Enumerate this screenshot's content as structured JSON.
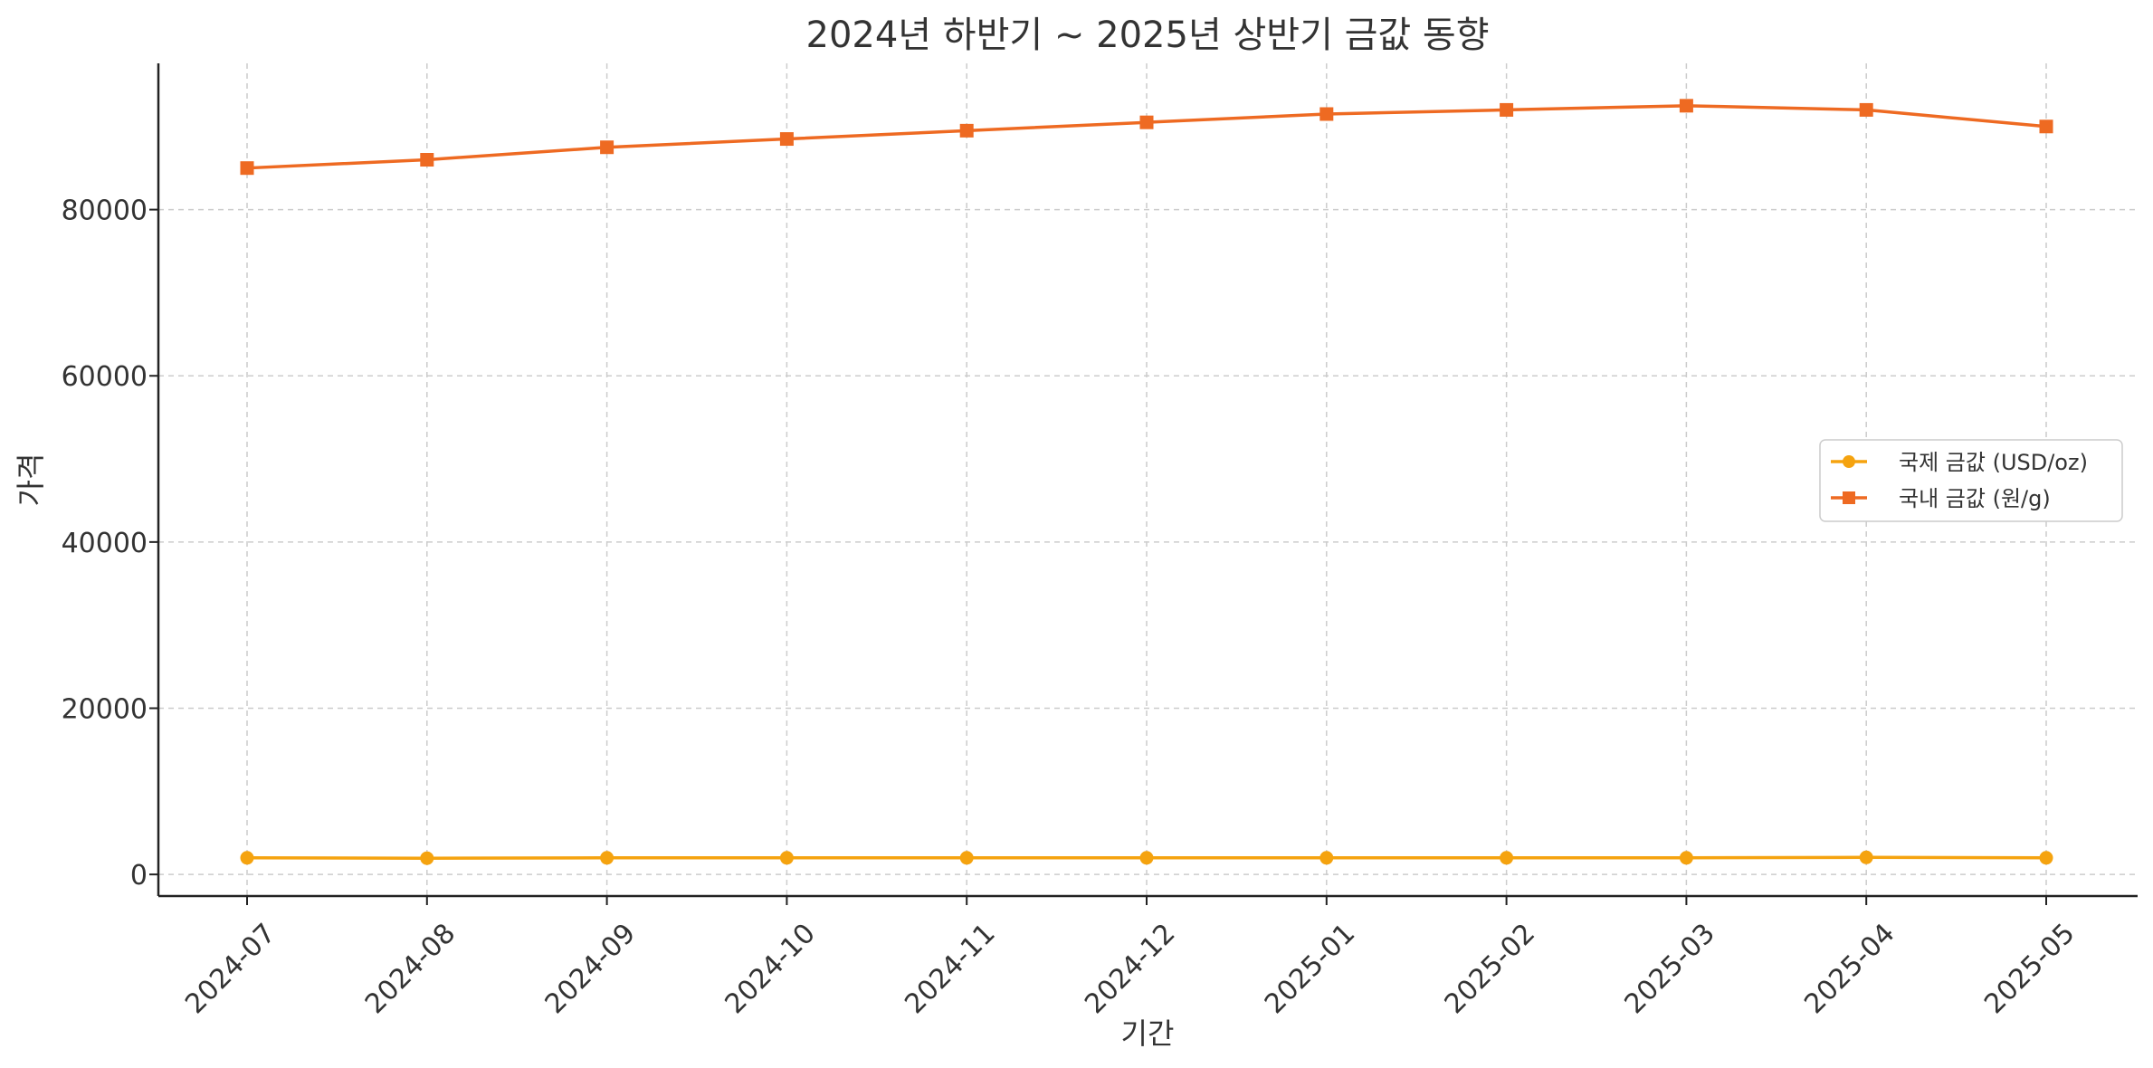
{
  "chart_data": {
    "type": "line",
    "title": "2024년 하반기 ~ 2025년 상반기 금값 동향",
    "xlabel": "기간",
    "ylabel": "가격",
    "categories": [
      "2024-07",
      "2024-08",
      "2024-09",
      "2024-10",
      "2024-11",
      "2024-12",
      "2025-01",
      "2025-02",
      "2025-03",
      "2025-04",
      "2025-05"
    ],
    "y_ticks": [
      0,
      20000,
      40000,
      60000,
      80000
    ],
    "ylim": [
      -2600,
      97600
    ],
    "grid": true,
    "legend_position": "right",
    "series": [
      {
        "name": "국제 금값 (USD/oz)",
        "color": "#F5A30F",
        "marker": "circle",
        "values": [
          2000,
          1950,
          2000,
          2000,
          2000,
          2000,
          2000,
          2000,
          2000,
          2050,
          2000
        ]
      },
      {
        "name": "국내 금값 (원/g)",
        "color": "#EE6A22",
        "marker": "square",
        "values": [
          85000,
          86000,
          87500,
          88500,
          89500,
          90500,
          91500,
          92000,
          92500,
          92000,
          90000
        ]
      }
    ]
  }
}
